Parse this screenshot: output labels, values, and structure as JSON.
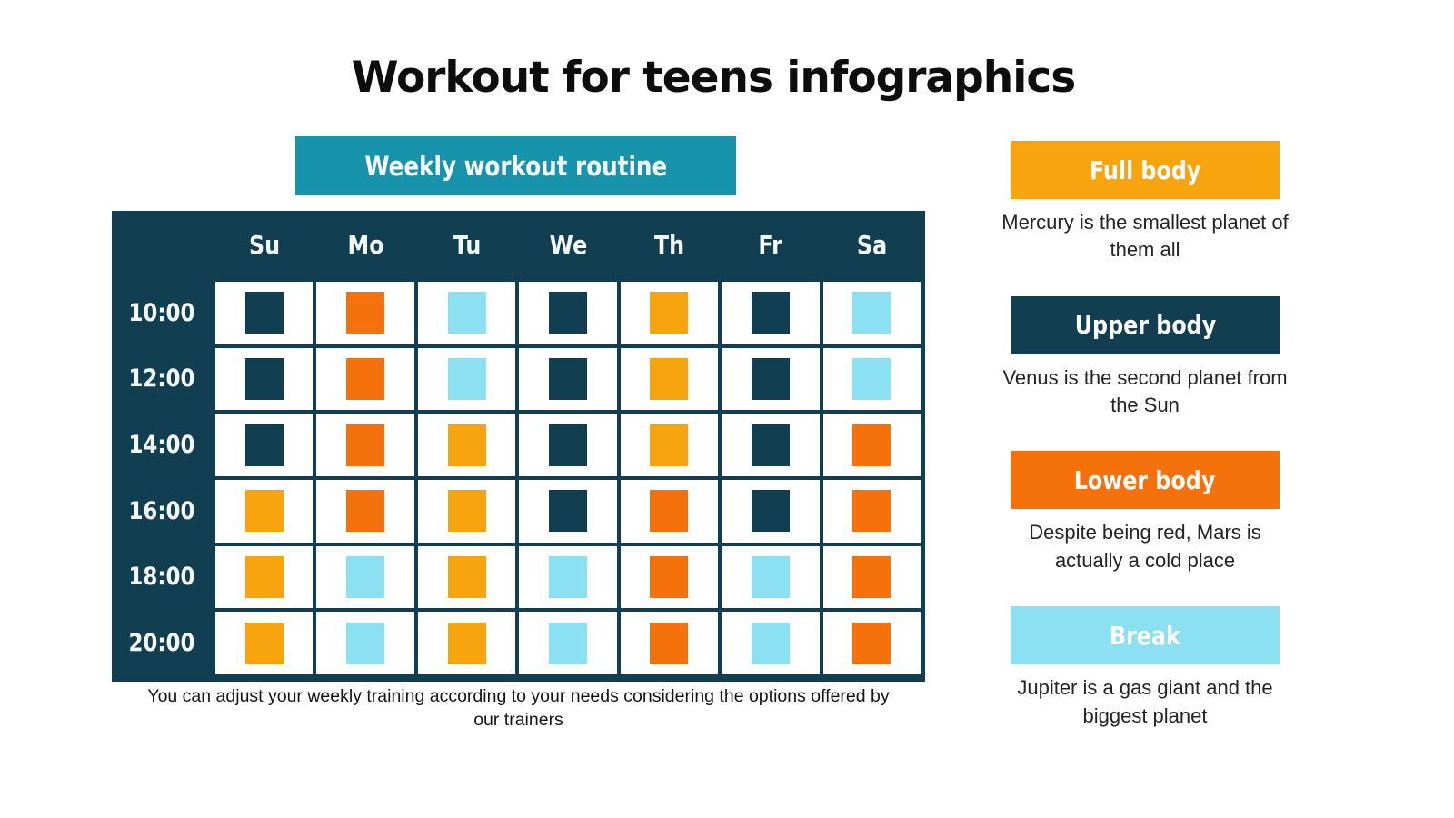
{
  "title": "Workout for teens infographics",
  "chart_data": {
    "type": "heatmap",
    "title": "Weekly workout routine",
    "x_labels": [
      "Su",
      "Mo",
      "Tu",
      "We",
      "Th",
      "Fr",
      "Sa"
    ],
    "y_labels": [
      "10:00",
      "12:00",
      "14:00",
      "16:00",
      "18:00",
      "20:00"
    ],
    "values": [
      [
        "upper",
        "lower",
        "break",
        "upper",
        "full",
        "upper",
        "break"
      ],
      [
        "upper",
        "lower",
        "break",
        "upper",
        "full",
        "upper",
        "break"
      ],
      [
        "upper",
        "lower",
        "full",
        "upper",
        "full",
        "upper",
        "lower"
      ],
      [
        "full",
        "lower",
        "full",
        "upper",
        "lower",
        "upper",
        "lower"
      ],
      [
        "full",
        "break",
        "full",
        "break",
        "lower",
        "break",
        "lower"
      ],
      [
        "full",
        "break",
        "full",
        "break",
        "lower",
        "break",
        "lower"
      ]
    ],
    "legend_position": "right",
    "legend": [
      {
        "label": "Full body",
        "type": "full",
        "description": "Mercury is the smallest planet of them all"
      },
      {
        "label": "Upper body",
        "type": "upper",
        "description": "Venus is the second planet from the Sun"
      },
      {
        "label": "Lower body",
        "type": "lower",
        "description": "Despite being red, Mars is actually a cold place"
      },
      {
        "label": "Break",
        "type": "break",
        "description": "Jupiter is a gas giant and the biggest planet"
      }
    ]
  },
  "footnote": "You can adjust your weekly training according to your needs considering the options offered by our trainers",
  "colors": {
    "full": "#F7A40E",
    "upper": "#113F51",
    "lower": "#F4710C",
    "break": "#8BE0F2",
    "banner_teal": "#1793AB",
    "table_navy": "#113F51",
    "cell_white": "#FFFFFF",
    "header_text": "#F4F9F9",
    "caption_text": "#242424"
  }
}
